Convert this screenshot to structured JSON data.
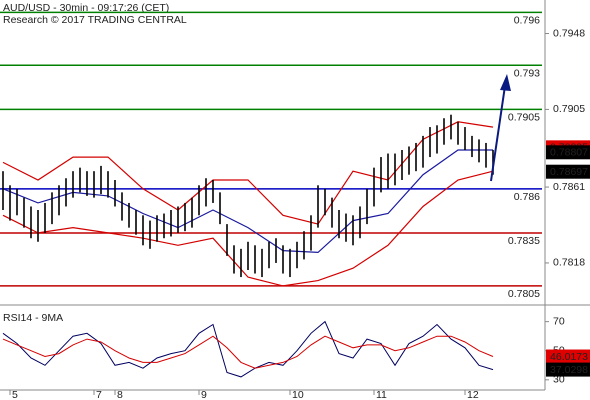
{
  "chart_data": [
    {
      "type": "range",
      "title": "AUD/USD - 30min - 09:17:26 (CET)",
      "subtitle": "Research © 2017 TRADING CENTRAL",
      "color": "#000000",
      "x": [
        0,
        1,
        2,
        3,
        4,
        5,
        6,
        7,
        8,
        9,
        10,
        11,
        12,
        13,
        14,
        15,
        16,
        17,
        18,
        19,
        20,
        21,
        22,
        23,
        24,
        25,
        26,
        27,
        28,
        29,
        30,
        31,
        32,
        33,
        34,
        35,
        36,
        37,
        38,
        39,
        40,
        41,
        42,
        43,
        44,
        45,
        46,
        47,
        48,
        49,
        50,
        51,
        52,
        53,
        54,
        55,
        56,
        57,
        58,
        59,
        60,
        61,
        62,
        63,
        64,
        65,
        66,
        67,
        68,
        69,
        70
      ],
      "low": [
        0.7848,
        0.7842,
        0.7845,
        0.7838,
        0.7832,
        0.783,
        0.7835,
        0.784,
        0.7845,
        0.785,
        0.7855,
        0.7858,
        0.7856,
        0.7855,
        0.7857,
        0.7855,
        0.785,
        0.7842,
        0.7838,
        0.7834,
        0.7828,
        0.7826,
        0.783,
        0.7832,
        0.7833,
        0.7835,
        0.7836,
        0.7838,
        0.7845,
        0.785,
        0.7852,
        0.784,
        0.7822,
        0.7812,
        0.781,
        0.7814,
        0.7812,
        0.781,
        0.7815,
        0.7818,
        0.7812,
        0.781,
        0.7815,
        0.782,
        0.7825,
        0.7838,
        0.7845,
        0.7838,
        0.7832,
        0.783,
        0.7828,
        0.7832,
        0.784,
        0.785,
        0.7858,
        0.786,
        0.7862,
        0.7865,
        0.7868,
        0.787,
        0.7872,
        0.7878,
        0.788,
        0.7885,
        0.7888,
        0.7885,
        0.7882,
        0.7878,
        0.7875,
        0.7872,
        0.7868
      ],
      "high": [
        0.787,
        0.7862,
        0.786,
        0.7855,
        0.785,
        0.7848,
        0.7852,
        0.7858,
        0.7862,
        0.7866,
        0.787,
        0.7872,
        0.787,
        0.787,
        0.7873,
        0.787,
        0.7865,
        0.7858,
        0.7852,
        0.7848,
        0.7845,
        0.7842,
        0.7845,
        0.7846,
        0.7848,
        0.785,
        0.7852,
        0.7855,
        0.7862,
        0.7866,
        0.7865,
        0.7858,
        0.784,
        0.7828,
        0.7826,
        0.783,
        0.7828,
        0.7826,
        0.783,
        0.7832,
        0.7828,
        0.7826,
        0.783,
        0.7836,
        0.7845,
        0.7862,
        0.786,
        0.7855,
        0.7848,
        0.7846,
        0.7845,
        0.785,
        0.786,
        0.7872,
        0.7878,
        0.788,
        0.788,
        0.7882,
        0.7884,
        0.7886,
        0.789,
        0.7895,
        0.7896,
        0.79,
        0.7902,
        0.7898,
        0.7895,
        0.789,
        0.7888,
        0.7886,
        0.7882
      ],
      "overlays": [
        {
          "color": "#d40000",
          "x": [
            0,
            5,
            10,
            15,
            20,
            25,
            30,
            35,
            40,
            45,
            50,
            55,
            60,
            65,
            70
          ],
          "values": [
            0.7875,
            0.7865,
            0.7878,
            0.7878,
            0.786,
            0.7848,
            0.7865,
            0.7865,
            0.7845,
            0.784,
            0.787,
            0.7865,
            0.7888,
            0.7898,
            0.7895
          ]
        },
        {
          "color": "#d40000",
          "x": [
            0,
            5,
            10,
            15,
            20,
            25,
            30,
            35,
            40,
            45,
            50,
            55,
            60,
            65,
            70
          ],
          "values": [
            0.7845,
            0.7835,
            0.7838,
            0.7835,
            0.7832,
            0.7828,
            0.7832,
            0.781,
            0.7805,
            0.7808,
            0.7815,
            0.7828,
            0.785,
            0.7865,
            0.787
          ]
        },
        {
          "color": "#1a1aa0",
          "x": [
            0,
            5,
            10,
            15,
            20,
            25,
            30,
            35,
            40,
            45,
            50,
            55,
            60,
            65,
            70
          ],
          "values": [
            0.786,
            0.7852,
            0.7858,
            0.7856,
            0.7846,
            0.7838,
            0.7848,
            0.7838,
            0.7825,
            0.7824,
            0.7842,
            0.7846,
            0.7868,
            0.7882,
            0.7882
          ]
        }
      ],
      "levels": [
        {
          "value": 0.796,
          "color": "#008000"
        },
        {
          "value": 0.793,
          "color": "#008000"
        },
        {
          "value": 0.7905,
          "color": "#008000"
        },
        {
          "value": 0.786,
          "color": "#0000c0"
        },
        {
          "value": 0.7835,
          "color": "#c00000"
        },
        {
          "value": 0.7805,
          "color": "#c00000"
        }
      ],
      "tags": [
        {
          "value": 0.78835,
          "color": "#e00000"
        },
        {
          "value": 0.78807,
          "color": "#000000"
        },
        {
          "value": 0.78697,
          "color": "#000000"
        }
      ],
      "xlim": [
        0,
        77
      ],
      "ylim": [
        0.7797,
        0.7967
      ],
      "yticks": [
        0.7818,
        0.7861,
        0.7905,
        0.7948
      ],
      "xticks": [
        {
          "value": 1,
          "label": "5"
        },
        {
          "value": 13,
          "label": "7"
        },
        {
          "value": 16,
          "label": "8"
        },
        {
          "value": 28,
          "label": "9"
        },
        {
          "value": 41,
          "label": "10"
        },
        {
          "value": 53,
          "label": "11"
        },
        {
          "value": 66,
          "label": "12"
        }
      ]
    },
    {
      "type": "line",
      "title": "RSI14 - 9MA",
      "x": [
        0,
        2,
        4,
        6,
        8,
        10,
        12,
        14,
        16,
        18,
        20,
        22,
        24,
        26,
        28,
        30,
        32,
        34,
        36,
        38,
        40,
        42,
        44,
        46,
        48,
        50,
        52,
        54,
        56,
        58,
        60,
        62,
        64,
        66,
        68,
        70
      ],
      "series": [
        {
          "color": "#000060",
          "values": [
            62,
            55,
            45,
            40,
            50,
            60,
            62,
            55,
            40,
            42,
            38,
            45,
            48,
            50,
            62,
            68,
            35,
            32,
            38,
            42,
            40,
            50,
            62,
            70,
            48,
            45,
            58,
            55,
            40,
            55,
            60,
            68,
            58,
            52,
            40,
            37
          ]
        },
        {
          "color": "#d40000",
          "values": [
            58,
            54,
            50,
            46,
            48,
            54,
            58,
            56,
            50,
            45,
            42,
            42,
            45,
            48,
            54,
            60,
            52,
            42,
            38,
            40,
            42,
            46,
            54,
            60,
            56,
            52,
            54,
            54,
            50,
            52,
            56,
            60,
            60,
            56,
            50,
            46
          ]
        }
      ],
      "tags": [
        {
          "value": 46.0173,
          "color": "#e00000"
        },
        {
          "value": 37.0298,
          "color": "#000000"
        }
      ],
      "xlim": [
        0,
        77
      ],
      "ylim": [
        23,
        78
      ],
      "yticks": [
        30,
        50,
        70
      ]
    }
  ]
}
